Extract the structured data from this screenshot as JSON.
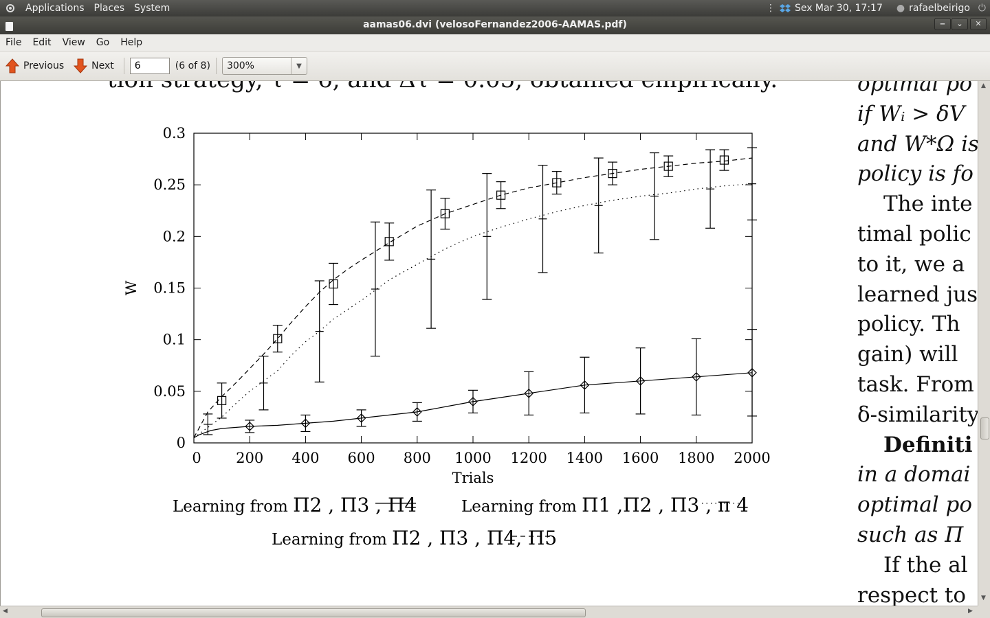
{
  "panel": {
    "menus": [
      "Applications",
      "Places",
      "System"
    ],
    "datetime": "Sex Mar 30, 17:17",
    "user": "rafaelbeirigo"
  },
  "window": {
    "title": "aamas06.dvi (velosoFernandez2006-AAMAS.pdf)"
  },
  "menubar": {
    "items": [
      "File",
      "Edit",
      "View",
      "Go",
      "Help"
    ]
  },
  "toolbar": {
    "previous_label": "Previous",
    "next_label": "Next",
    "page_value": "6",
    "page_of": "(6 of 8)",
    "zoom_value": "300%"
  },
  "document": {
    "top_text": "tion strategy, τ = 6, and Δτ = 0.05, obtained empirically.",
    "right_lines": [
      {
        "text": "optimal po",
        "style": "it"
      },
      {
        "text": "if Wᵢ > δV",
        "style": "it"
      },
      {
        "text": "and W*Ω is",
        "style": "it"
      },
      {
        "text": "policy is fo",
        "style": "it"
      },
      {
        "text": "The inte",
        "style": "indent"
      },
      {
        "text": "timal polic",
        "style": ""
      },
      {
        "text": "to it, we a",
        "style": ""
      },
      {
        "text": "learned jus",
        "style": ""
      },
      {
        "text": "policy. Th",
        "style": ""
      },
      {
        "text": "gain) will",
        "style": ""
      },
      {
        "text": "task. From",
        "style": ""
      },
      {
        "text": "δ-similarity",
        "style": ""
      },
      {
        "text": "Definiti",
        "style": "b indent"
      },
      {
        "text": "in a domai",
        "style": "it"
      },
      {
        "text": "optimal po",
        "style": "it"
      },
      {
        "text": "such as Π",
        "style": "it"
      },
      {
        "text": "If the al",
        "style": "indent"
      },
      {
        "text": "respect to",
        "style": ""
      }
    ]
  },
  "chart_data": {
    "type": "line",
    "xlabel": "Trials",
    "ylabel": "W",
    "xlim": [
      0,
      2000
    ],
    "ylim": [
      0,
      0.3
    ],
    "xticks": [
      0,
      200,
      400,
      600,
      800,
      1000,
      1200,
      1400,
      1600,
      1800,
      2000
    ],
    "yticks": [
      0,
      0.05,
      0.1,
      0.15,
      0.2,
      0.25,
      0.3
    ],
    "ytick_labels": [
      "0",
      "0.05",
      "0.1",
      "0.15",
      "0.2",
      "0.25",
      "0.3"
    ],
    "series": [
      {
        "style": "solid",
        "marker": "diamond",
        "legend_text": "Learning from Π2, Π3, Π4",
        "x": [
          0,
          20,
          60,
          100,
          200,
          300,
          400,
          500,
          600,
          700,
          800,
          900,
          1000,
          1100,
          1200,
          1300,
          1400,
          1500,
          1600,
          1700,
          1800,
          1900,
          2000
        ],
        "y": [
          0.005,
          0.008,
          0.012,
          0.014,
          0.016,
          0.017,
          0.019,
          0.021,
          0.024,
          0.027,
          0.03,
          0.035,
          0.04,
          0.044,
          0.048,
          0.052,
          0.056,
          0.058,
          0.06,
          0.062,
          0.064,
          0.066,
          0.068
        ],
        "points": {
          "x": [
            200,
            400,
            600,
            800,
            1000,
            1200,
            1400,
            1600,
            1800,
            2000
          ],
          "y": [
            0.016,
            0.019,
            0.024,
            0.03,
            0.04,
            0.048,
            0.056,
            0.06,
            0.064,
            0.068
          ],
          "err": [
            0.006,
            0.008,
            0.008,
            0.009,
            0.011,
            0.021,
            0.027,
            0.032,
            0.037,
            0.042
          ]
        }
      },
      {
        "style": "dotted",
        "marker": "plus",
        "legend_text": "Learning from Π1, Π2, Π3, π4",
        "x": [
          0,
          50,
          100,
          150,
          200,
          250,
          300,
          350,
          400,
          450,
          500,
          600,
          700,
          800,
          900,
          1000,
          1100,
          1200,
          1300,
          1400,
          1500,
          1600,
          1700,
          1800,
          1900,
          2000
        ],
        "y": [
          0.005,
          0.015,
          0.025,
          0.038,
          0.05,
          0.06,
          0.07,
          0.085,
          0.098,
          0.108,
          0.12,
          0.138,
          0.158,
          0.173,
          0.188,
          0.2,
          0.209,
          0.217,
          0.224,
          0.23,
          0.235,
          0.239,
          0.242,
          0.246,
          0.249,
          0.251
        ],
        "points": {
          "x": [
            50,
            250,
            450,
            650,
            850,
            1050,
            1250,
            1450,
            1650,
            1850,
            2000
          ],
          "y": [
            0.018,
            0.058,
            0.108,
            0.149,
            0.178,
            0.2,
            0.217,
            0.23,
            0.239,
            0.246,
            0.251
          ],
          "err": [
            0.01,
            0.026,
            0.049,
            0.065,
            0.067,
            0.061,
            0.052,
            0.046,
            0.042,
            0.038,
            0.035
          ]
        }
      },
      {
        "style": "dashed",
        "marker": "square",
        "legend_text": "Learning from Π2, Π3, Π4, Π5",
        "x": [
          0,
          50,
          100,
          150,
          200,
          250,
          300,
          350,
          400,
          450,
          500,
          550,
          600,
          700,
          800,
          900,
          1000,
          1100,
          1200,
          1300,
          1400,
          1500,
          1600,
          1700,
          1800,
          1900,
          2000
        ],
        "y": [
          0.005,
          0.03,
          0.045,
          0.058,
          0.072,
          0.086,
          0.101,
          0.117,
          0.132,
          0.146,
          0.158,
          0.168,
          0.177,
          0.194,
          0.21,
          0.222,
          0.231,
          0.24,
          0.247,
          0.252,
          0.257,
          0.261,
          0.265,
          0.268,
          0.271,
          0.273,
          0.276
        ],
        "points": {
          "x": [
            100,
            300,
            500,
            700,
            900,
            1100,
            1300,
            1500,
            1700,
            1900
          ],
          "y": [
            0.041,
            0.101,
            0.154,
            0.195,
            0.222,
            0.24,
            0.252,
            0.261,
            0.268,
            0.274
          ],
          "err": [
            0.017,
            0.013,
            0.02,
            0.018,
            0.015,
            0.013,
            0.011,
            0.011,
            0.01,
            0.01
          ]
        }
      }
    ],
    "legend": [
      {
        "prefix": "Learning from ",
        "symbols": "Π2 , Π3 , Π4",
        "style": "solid"
      },
      {
        "prefix": "Learning from ",
        "symbols": "Π1 ,Π2 , Π3 , π 4",
        "style": "dotted"
      },
      {
        "prefix": "Learning from ",
        "symbols": "Π2 , Π3 , Π4, Π5",
        "style": "dashed"
      }
    ]
  },
  "colors": {
    "panel_bg": "#3f3f3b",
    "window_bg": "#dcdad5",
    "page_bg": "#ffffff",
    "accent_arrow": "#e2541e"
  }
}
